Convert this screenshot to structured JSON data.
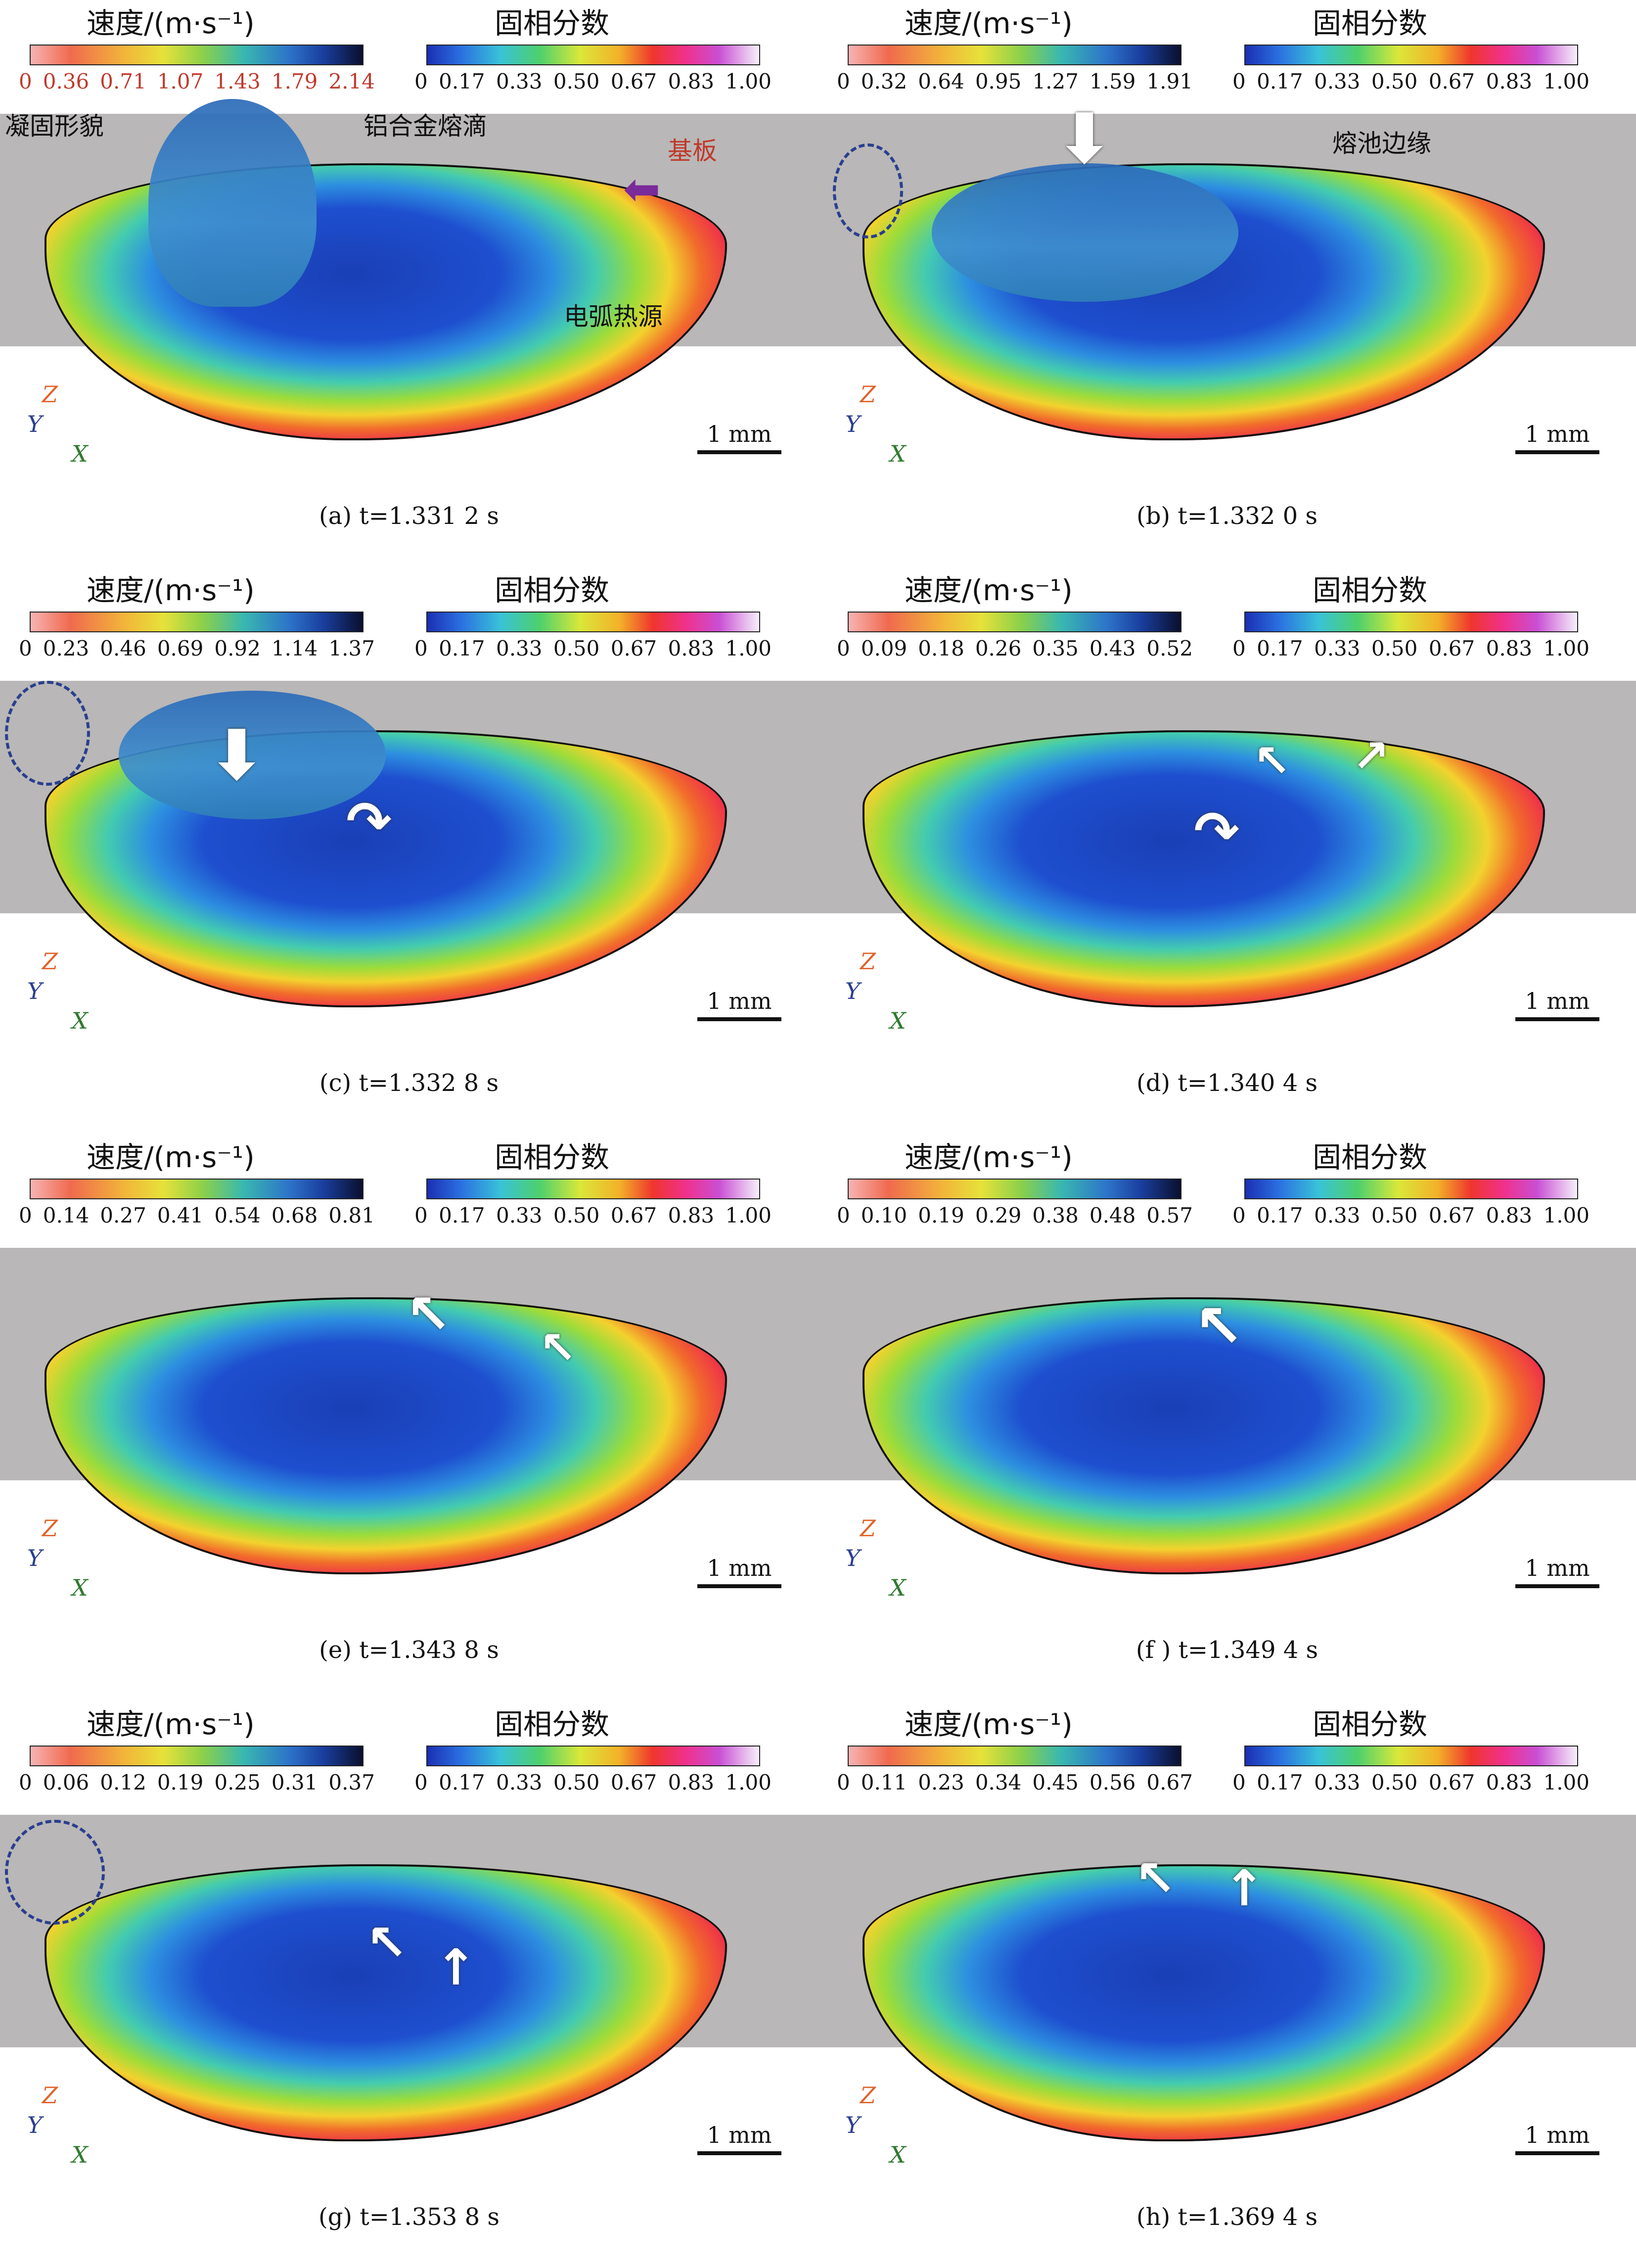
{
  "legend_titles": {
    "speed": "速度/(m·s⁻¹)",
    "solid": "固相分数"
  },
  "solid_ticks": [
    "0",
    "0.17",
    "0.33",
    "0.50",
    "0.67",
    "0.83",
    "1.00"
  ],
  "scale_label": "1 mm",
  "axis_labels": {
    "z": "Z",
    "y": "Y",
    "x": "X"
  },
  "annotations": {
    "a": {
      "solidified": "凝固形貌",
      "droplet": "铝合金熔滴",
      "substrate": "基板",
      "arc": "电弧热源"
    },
    "b": {
      "pool_edge": "熔池边缘"
    }
  },
  "panels": [
    {
      "id": "a",
      "caption": "(a) t=1.331 2 s",
      "speed_ticks": [
        "0",
        "0.36",
        "0.71",
        "1.07",
        "1.43",
        "1.79",
        "2.14"
      ]
    },
    {
      "id": "b",
      "caption": "(b) t=1.332 0 s",
      "speed_ticks": [
        "0",
        "0.32",
        "0.64",
        "0.95",
        "1.27",
        "1.59",
        "1.91"
      ]
    },
    {
      "id": "c",
      "caption": "(c) t=1.332 8 s",
      "speed_ticks": [
        "0",
        "0.23",
        "0.46",
        "0.69",
        "0.92",
        "1.14",
        "1.37"
      ]
    },
    {
      "id": "d",
      "caption": "(d) t=1.340 4 s",
      "speed_ticks": [
        "0",
        "0.09",
        "0.18",
        "0.26",
        "0.35",
        "0.43",
        "0.52"
      ]
    },
    {
      "id": "e",
      "caption": "(e) t=1.343 8 s",
      "speed_ticks": [
        "0",
        "0.14",
        "0.27",
        "0.41",
        "0.54",
        "0.68",
        "0.81"
      ]
    },
    {
      "id": "f",
      "caption": "(f ) t=1.349 4 s",
      "speed_ticks": [
        "0",
        "0.10",
        "0.19",
        "0.29",
        "0.38",
        "0.48",
        "0.57"
      ]
    },
    {
      "id": "g",
      "caption": "(g) t=1.353 8 s",
      "speed_ticks": [
        "0",
        "0.06",
        "0.12",
        "0.19",
        "0.25",
        "0.31",
        "0.37"
      ]
    },
    {
      "id": "h",
      "caption": "(h) t=1.369 4 s",
      "speed_ticks": [
        "0",
        "0.11",
        "0.23",
        "0.34",
        "0.45",
        "0.56",
        "0.67"
      ]
    }
  ]
}
